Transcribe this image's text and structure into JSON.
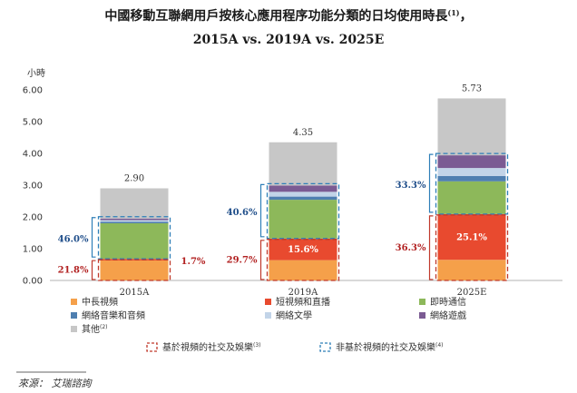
{
  "title_line1": "中國移動互聯網用戶按核心應用程序功能分類的日均使用時長",
  "title_sup": "(1)",
  "title_comma": "，",
  "title_line2": "2015A vs. 2019A vs. 2025E",
  "source": "來源： 艾瑞諮詢",
  "chart_data": {
    "type": "bar",
    "stacked": true,
    "ylabel": "小時",
    "ylim": [
      0,
      6
    ],
    "yticks": [
      "0.00",
      "1.00",
      "2.00",
      "3.00",
      "4.00",
      "5.00",
      "6.00"
    ],
    "categories": [
      "2015A",
      "2019A",
      "2025E"
    ],
    "totals": [
      "2.90",
      "4.35",
      "5.73"
    ],
    "series": [
      {
        "name": "中長視頻",
        "color": "#f5a04a",
        "values": [
          0.63,
          0.64,
          0.65
        ]
      },
      {
        "name": "短視頻和直播",
        "color": "#e84a2f",
        "values": [
          0.05,
          0.68,
          1.44
        ]
      },
      {
        "name": "即時通信",
        "color": "#8db85a",
        "values": [
          1.12,
          1.22,
          1.03
        ]
      },
      {
        "name": "網絡音樂和音頻",
        "color": "#4f7fb0",
        "values": [
          0.05,
          0.1,
          0.17
        ]
      },
      {
        "name": "網絡文學",
        "color": "#c2d4e8",
        "values": [
          0.05,
          0.15,
          0.25
        ]
      },
      {
        "name": "網絡遊戲",
        "color": "#7b5b93",
        "values": [
          0.05,
          0.2,
          0.4
        ]
      },
      {
        "name": "其他",
        "sup": "(2)",
        "color": "#c7c7c7",
        "values": [
          0.95,
          1.36,
          1.79
        ]
      }
    ],
    "group_labels": {
      "non_social": [
        "46.0%",
        "40.6%",
        "33.3%"
      ],
      "social": [
        "21.8%",
        "29.7%",
        "36.3%"
      ],
      "short_video_inbar": [
        "1.7%",
        "15.6%",
        "25.1%"
      ]
    },
    "legend_groups": [
      {
        "name": "基於視頻的社交及娛樂",
        "sup": "(3)",
        "color": "#c0392b"
      },
      {
        "name": "非基於視頻的社交及娛樂",
        "sup": "(4)",
        "color": "#2e7fb8"
      }
    ]
  }
}
